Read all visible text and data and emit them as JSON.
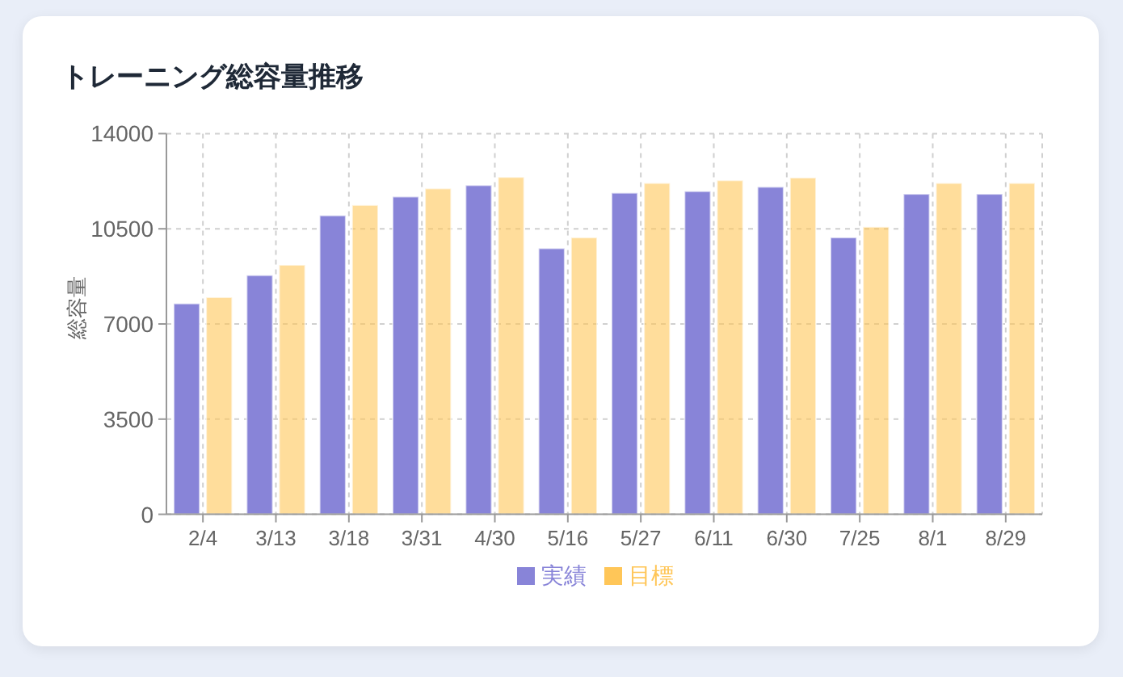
{
  "chart_data": {
    "type": "bar",
    "title": "トレーニング総容量推移",
    "ylabel": "総容量",
    "categories": [
      "2/4",
      "3/13",
      "3/18",
      "3/31",
      "4/30",
      "5/16",
      "5/27",
      "6/11",
      "6/30",
      "7/25",
      "8/1",
      "8/29"
    ],
    "series": [
      {
        "name": "実績",
        "color": "#8884d8",
        "values": [
          7750,
          8790,
          10990,
          11680,
          12100,
          9780,
          11820,
          11880,
          12040,
          10180,
          11780,
          11780
        ]
      },
      {
        "name": "目標",
        "color": "#ffc658",
        "values": [
          7980,
          9170,
          11370,
          11980,
          12400,
          10180,
          12180,
          12280,
          12380,
          10570,
          12180,
          12180
        ]
      }
    ],
    "ylim": [
      0,
      14000
    ],
    "yticks": [
      0,
      3500,
      7000,
      10500,
      14000
    ],
    "grid": true,
    "legend": "bottom"
  }
}
